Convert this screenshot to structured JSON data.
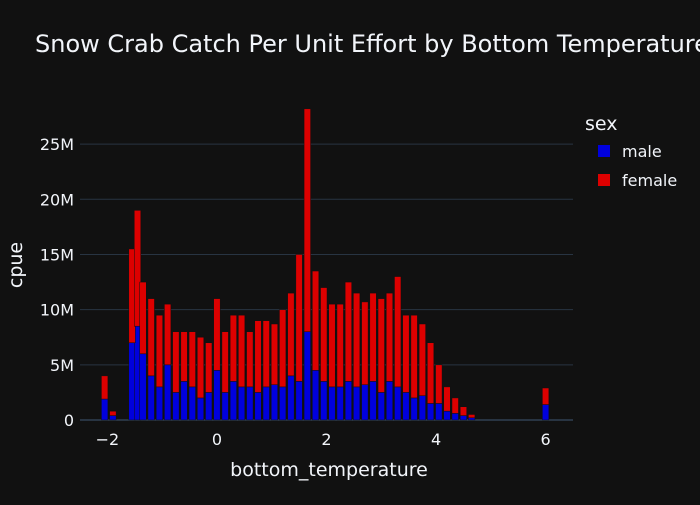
{
  "chart_data": {
    "type": "bar",
    "barmode": "stack",
    "title": "Snow Crab Catch Per Unit Effort by Bottom Temperature",
    "xlabel": "bottom_temperature",
    "ylabel": "cpue",
    "xlim": [
      -2.5,
      6.5
    ],
    "ylim": [
      0,
      29000000
    ],
    "x_ticks": [
      -2,
      0,
      2,
      4,
      6
    ],
    "x_tick_labels": [
      "−2",
      "0",
      "2",
      "4",
      "6"
    ],
    "y_ticks": [
      0,
      5000000,
      10000000,
      15000000,
      20000000,
      25000000
    ],
    "y_tick_labels": [
      "0",
      "5M",
      "10M",
      "15M",
      "20M",
      "25M"
    ],
    "grid": true,
    "legend": {
      "title": "sex",
      "position": "top-right"
    },
    "series": [
      {
        "name": "male",
        "color": "#0000dd",
        "x": [
          -2.05,
          -1.9,
          -1.55,
          -1.45,
          -1.35,
          -1.2,
          -1.05,
          -0.9,
          -0.75,
          -0.6,
          -0.45,
          -0.3,
          -0.15,
          0.0,
          0.15,
          0.3,
          0.45,
          0.6,
          0.75,
          0.9,
          1.05,
          1.2,
          1.35,
          1.5,
          1.65,
          1.8,
          1.95,
          2.1,
          2.25,
          2.4,
          2.55,
          2.7,
          2.85,
          3.0,
          3.15,
          3.3,
          3.45,
          3.6,
          3.75,
          3.9,
          4.05,
          4.2,
          4.35,
          4.5,
          4.65,
          6.0
        ],
        "values": [
          1900000,
          400000,
          7000000,
          8500000,
          6000000,
          4000000,
          3000000,
          5000000,
          2500000,
          3500000,
          3000000,
          2000000,
          2500000,
          4500000,
          2500000,
          3500000,
          3000000,
          3000000,
          2500000,
          3000000,
          3200000,
          3000000,
          4000000,
          3500000,
          8000000,
          4500000,
          3500000,
          3000000,
          3000000,
          3500000,
          3000000,
          3200000,
          3500000,
          2500000,
          3500000,
          3000000,
          2500000,
          2000000,
          2200000,
          1500000,
          1500000,
          800000,
          600000,
          400000,
          200000,
          1400000
        ]
      },
      {
        "name": "female",
        "color": "#dd0000",
        "x": [
          -2.05,
          -1.9,
          -1.55,
          -1.45,
          -1.35,
          -1.2,
          -1.05,
          -0.9,
          -0.75,
          -0.6,
          -0.45,
          -0.3,
          -0.15,
          0.0,
          0.15,
          0.3,
          0.45,
          0.6,
          0.75,
          0.9,
          1.05,
          1.2,
          1.35,
          1.5,
          1.65,
          1.8,
          1.95,
          2.1,
          2.25,
          2.4,
          2.55,
          2.7,
          2.85,
          3.0,
          3.15,
          3.3,
          3.45,
          3.6,
          3.75,
          3.9,
          4.05,
          4.2,
          4.35,
          4.5,
          4.65,
          6.0
        ],
        "values": [
          2100000,
          400000,
          8500000,
          10500000,
          6500000,
          7000000,
          6500000,
          5500000,
          5500000,
          4500000,
          5000000,
          5500000,
          4500000,
          6500000,
          5500000,
          6000000,
          6500000,
          5000000,
          6500000,
          6000000,
          5500000,
          7000000,
          7500000,
          11500000,
          20200000,
          9000000,
          8500000,
          7500000,
          7500000,
          9000000,
          8500000,
          7500000,
          8000000,
          8500000,
          8000000,
          10000000,
          7000000,
          7500000,
          6500000,
          5500000,
          3500000,
          2200000,
          1400000,
          800000,
          300000,
          1500000
        ]
      }
    ]
  }
}
